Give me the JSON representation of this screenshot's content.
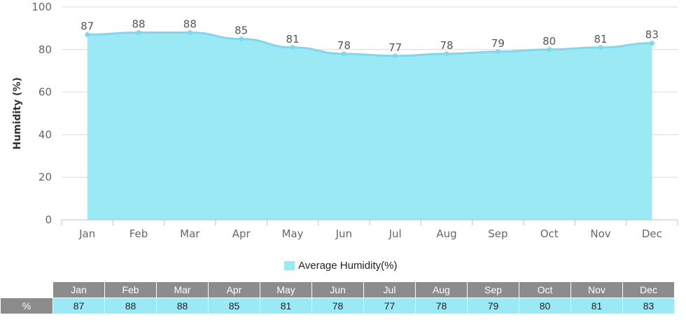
{
  "chart_data": {
    "type": "area",
    "categories": [
      "Jan",
      "Feb",
      "Mar",
      "Apr",
      "May",
      "Jun",
      "Jul",
      "Aug",
      "Sep",
      "Oct",
      "Nov",
      "Dec"
    ],
    "series": [
      {
        "name": "Average Humidity(%)",
        "values": [
          87,
          88,
          88,
          85,
          81,
          78,
          77,
          78,
          79,
          80,
          81,
          83
        ]
      }
    ],
    "ylabel": "Humidity (%)",
    "xlabel": "",
    "ylim": [
      0,
      100
    ],
    "yticks": [
      0,
      20,
      40,
      60,
      80,
      100
    ],
    "grid": true,
    "legend_placement": "bottom-center"
  },
  "colors": {
    "fill": "#9be9f5",
    "line": "#7adbee",
    "table_cell": "#9be9f5",
    "header": "#8c8c8c"
  },
  "legend": {
    "label": "Average Humidity(%)"
  },
  "table": {
    "row_label": "%"
  }
}
